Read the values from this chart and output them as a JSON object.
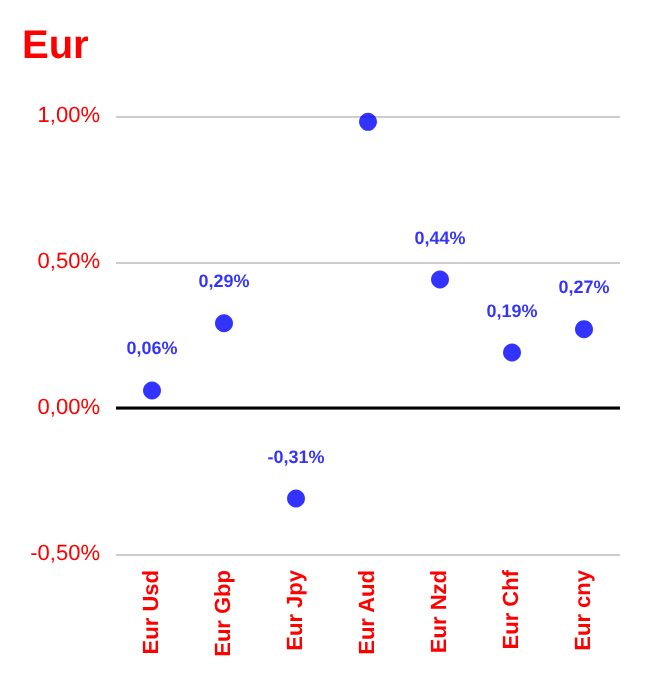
{
  "chart_data": {
    "type": "scatter",
    "title": "Eur",
    "categories": [
      "Eur Usd",
      "Eur Gbp",
      "Eur Jpy",
      "Eur Aud",
      "Eur Nzd",
      "Eur Chf",
      "Eur cny"
    ],
    "series": [
      {
        "color": "#0000ff",
        "values": [
          0.06,
          0.29,
          -0.31,
          0.98,
          0.44,
          0.19,
          0.27
        ],
        "value_labels": [
          "0,06%",
          "0,29%",
          "-0,31%",
          null,
          "0,44%",
          "0,19%",
          "0,27%"
        ]
      }
    ],
    "ylim": [
      -0.5,
      1.0
    ],
    "yticks": [
      {
        "value": -0.5,
        "label": "-0,50%"
      },
      {
        "value": 0,
        "label": "0,00%"
      },
      {
        "value": 0.5,
        "label": "0,50%"
      },
      {
        "value": 1.0,
        "label": "1,00%"
      }
    ],
    "ref_lines": [
      {
        "axis": "y",
        "value": 0,
        "color": "#000000"
      }
    ],
    "grid": "y",
    "marker": "circle"
  }
}
